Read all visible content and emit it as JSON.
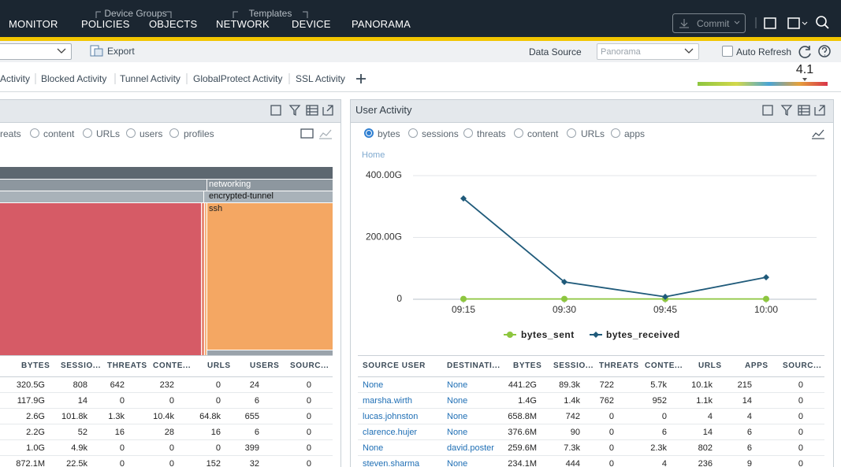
{
  "nav": {
    "items": [
      "MONITOR",
      "POLICIES",
      "OBJECTS",
      "NETWORK",
      "DEVICE",
      "PANORAMA"
    ],
    "groups": [
      "Device Groups",
      "Templates"
    ],
    "commit": "Commit"
  },
  "toolbar": {
    "export": "Export",
    "data_source_label": "Data Source",
    "data_source": "Panorama",
    "auto_refresh": "Auto Refresh"
  },
  "tabs": [
    "Activity",
    "Blocked Activity",
    "Tunnel Activity",
    "GlobalProtect Activity",
    "SSL Activity"
  ],
  "risk": "4.1",
  "left_panel": {
    "filters": [
      "reats",
      "content",
      "URLs",
      "users",
      "profiles"
    ],
    "treemap": [
      "networking",
      "encrypted-tunnel",
      "ssh"
    ],
    "table": {
      "columns": [
        "BYTES",
        "SESSIO...",
        "THREATS",
        "CONTE...",
        "URLS",
        "USERS",
        "SOURC..."
      ],
      "rows": [
        [
          "320.5G",
          "808",
          "642",
          "232",
          "0",
          "24",
          "0"
        ],
        [
          "117.9G",
          "14",
          "0",
          "0",
          "0",
          "6",
          "0"
        ],
        [
          "2.6G",
          "101.8k",
          "1.3k",
          "10.4k",
          "64.8k",
          "655",
          "0"
        ],
        [
          "2.2G",
          "52",
          "16",
          "28",
          "16",
          "6",
          "0"
        ],
        [
          "1.0G",
          "4.9k",
          "0",
          "0",
          "0",
          "399",
          "0"
        ],
        [
          "872.1M",
          "22.5k",
          "0",
          "0",
          "152",
          "32",
          "0"
        ]
      ]
    }
  },
  "right_panel": {
    "title": "User Activity",
    "filters": [
      "bytes",
      "sessions",
      "threats",
      "content",
      "URLs",
      "apps"
    ],
    "breadcrumb": "Home",
    "chart": {
      "type": "line",
      "x": [
        "09:15",
        "09:30",
        "09:45",
        "10:00"
      ],
      "series": [
        {
          "name": "bytes_sent",
          "color": "#8dc63f",
          "values": [
            1,
            1,
            1,
            1
          ]
        },
        {
          "name": "bytes_received",
          "color": "#1f5a7a",
          "values": [
            326,
            56,
            8,
            71
          ]
        }
      ],
      "ylim": [
        0,
        400
      ],
      "yticks": [
        0,
        {
          "value": 200,
          "label": "200.00G"
        },
        {
          "value": 400,
          "label": "400.00G"
        }
      ],
      "grid": true
    },
    "table": {
      "columns": [
        "SOURCE USER",
        "DESTINATI...",
        "BYTES",
        "SESSIO...",
        "THREATS",
        "CONTE...",
        "URLS",
        "APPS",
        "SOURC..."
      ],
      "rows": [
        [
          "None",
          "None",
          "441.2G",
          "89.3k",
          "722",
          "5.7k",
          "10.1k",
          "215",
          "0"
        ],
        [
          "marsha.wirth",
          "None",
          "1.4G",
          "1.4k",
          "762",
          "952",
          "1.1k",
          "14",
          "0"
        ],
        [
          "lucas.johnston",
          "None",
          "658.8M",
          "742",
          "0",
          "0",
          "4",
          "4",
          "0"
        ],
        [
          "clarence.hujer",
          "None",
          "376.6M",
          "90",
          "0",
          "6",
          "14",
          "6",
          "0"
        ],
        [
          "None",
          "david.poster",
          "259.6M",
          "7.3k",
          "0",
          "2.3k",
          "802",
          "6",
          "0"
        ],
        [
          "steven.sharma",
          "None",
          "234.1M",
          "444",
          "0",
          "4",
          "236",
          "9",
          "0"
        ]
      ]
    }
  }
}
